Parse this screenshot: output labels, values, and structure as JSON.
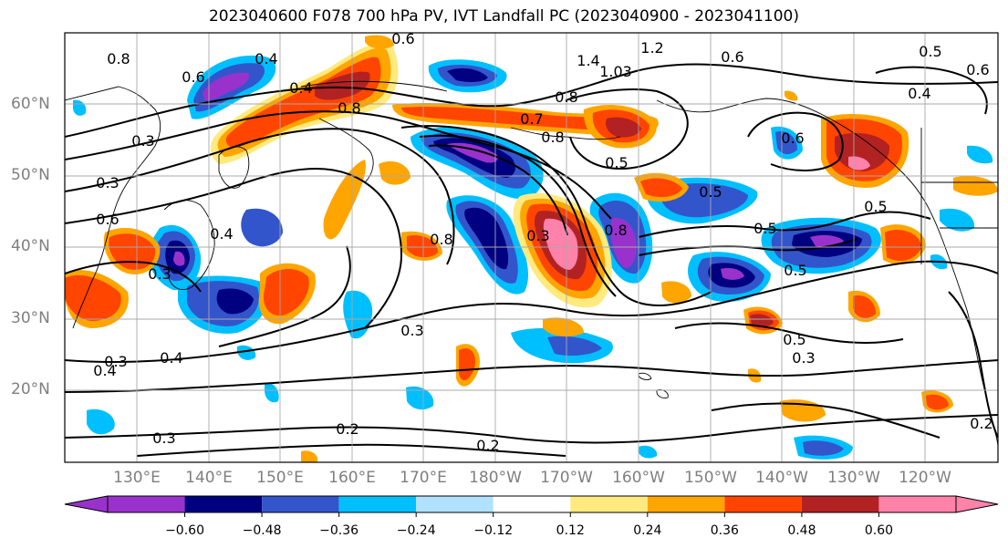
{
  "title": "2023040600 F078 700 hPa PV, IVT Landfall PC (2023040900 - 2023041100)",
  "map": {
    "lat_labels": [
      "60°N",
      "50°N",
      "40°N",
      "30°N",
      "20°N"
    ],
    "lon_labels": [
      "130°E",
      "140°E",
      "150°E",
      "160°E",
      "170°E",
      "180°W",
      "170°W",
      "160°W",
      "150°W",
      "140°W",
      "130°W",
      "120°W"
    ],
    "contour_labels": [
      "0.6",
      "0.4",
      "0.8",
      "0.4",
      "0.6",
      "1.4",
      "1.03",
      "1.2",
      "0.6",
      "0.8",
      "0.5",
      "0.4",
      "0.6",
      "0.8",
      "0.7",
      "0.8",
      "0.5",
      "0.6",
      "0.5",
      "0.8",
      "0.3",
      "0.3",
      "0.6",
      "0.4",
      "0.3",
      "0.3",
      "0.5",
      "0.8",
      "0.3",
      "0.5",
      "0.4",
      "0.3",
      "0.4",
      "0.2",
      "0.2",
      "0.3",
      "0.2",
      "0.8",
      "0.5",
      "0.3",
      "0.5"
    ]
  },
  "colorbar": {
    "tick_labels": [
      "−0.60",
      "−0.48",
      "−0.36",
      "−0.24",
      "−0.12",
      "0.12",
      "0.24",
      "0.36",
      "0.48",
      "0.60"
    ],
    "colors": [
      "#9932cc",
      "#000080",
      "#3355cc",
      "#00bfff",
      "#b0e2ff",
      "#ffffff",
      "#ffea80",
      "#ffa500",
      "#ff4500",
      "#b22222",
      "#ff82ab"
    ]
  }
}
